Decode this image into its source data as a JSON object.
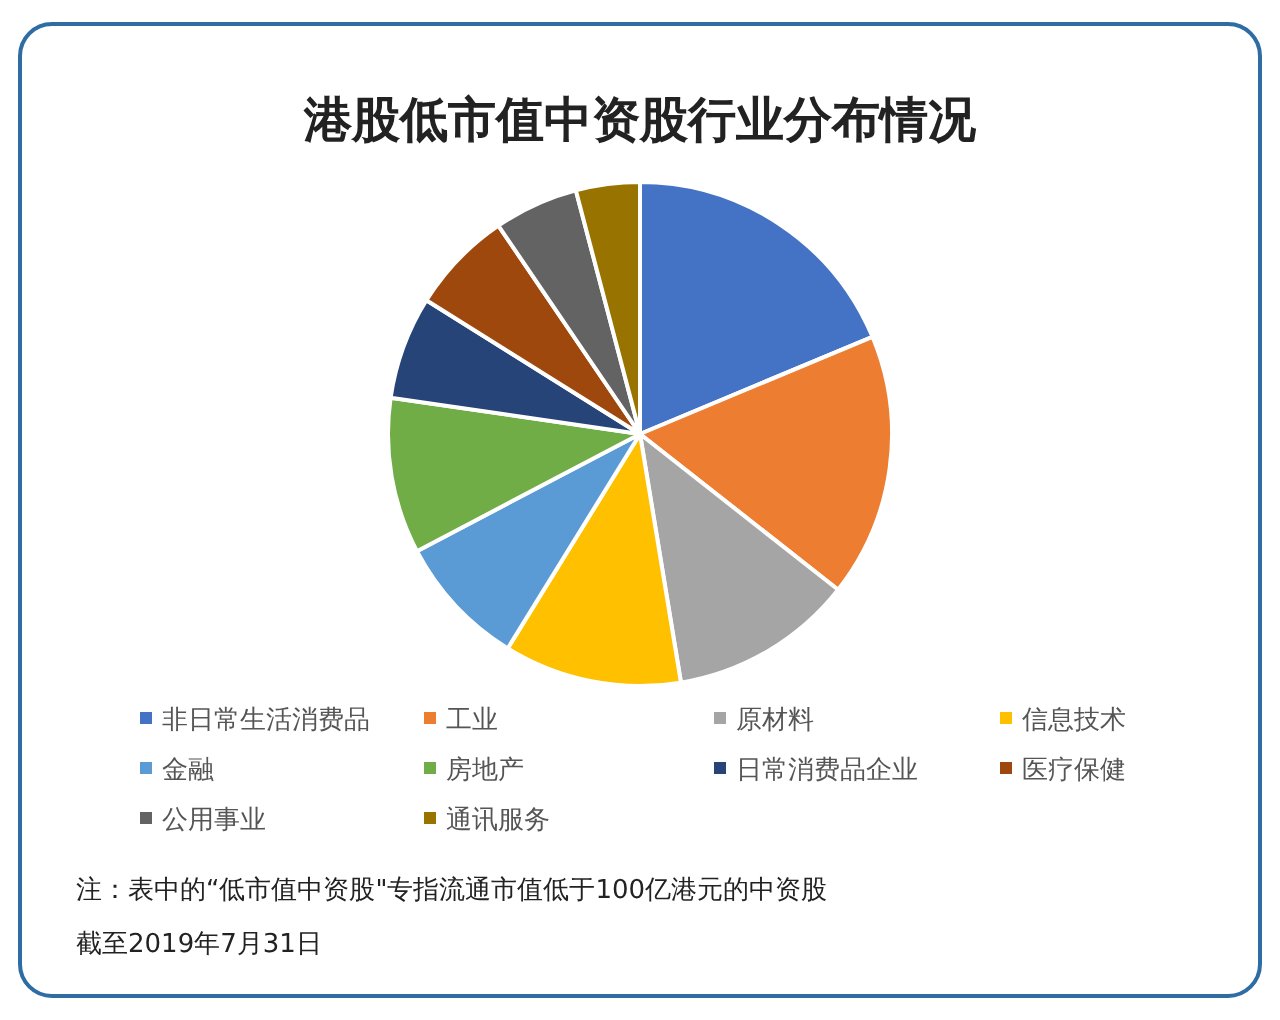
{
  "chart_data": {
    "type": "pie",
    "title": "港股低市值中资股行业分布情况",
    "categories": [
      "非日常生活消费品",
      "工业",
      "原材料",
      "信息技术",
      "金融",
      "房地产",
      "日常消费品企业",
      "医疗保健",
      "公用事业",
      "通讯服务"
    ],
    "values": [
      18.7,
      16.9,
      11.8,
      11.4,
      8.5,
      10.0,
      6.6,
      6.6,
      5.4,
      4.1
    ],
    "colors": [
      "#4472c4",
      "#ed7d31",
      "#a5a5a5",
      "#ffc000",
      "#5b9bd5",
      "#70ad47",
      "#264478",
      "#9e480e",
      "#636363",
      "#997300"
    ],
    "legend": "bottom",
    "annotations": [
      "注：表中的“低市值中资股\"专指流通市值低于100亿港元的中资股",
      "截至2019年7月31日"
    ]
  }
}
